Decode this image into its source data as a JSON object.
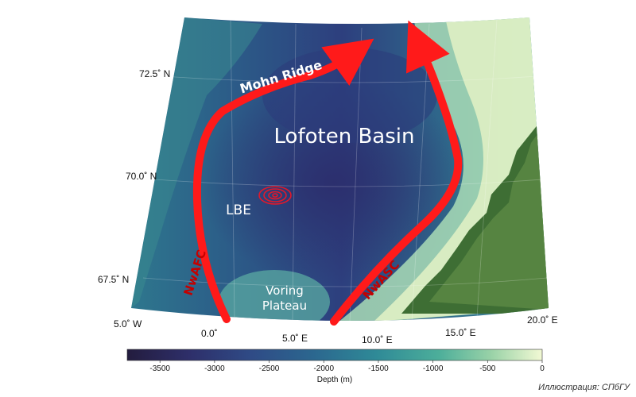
{
  "map": {
    "regions": {
      "mohn_ridge": "Mohn Ridge",
      "lofoten_basin": "Lofoten Basin",
      "lbe": "LBE",
      "voring_plateau_line1": "Voring",
      "voring_plateau_line2": "Plateau"
    },
    "currents": {
      "nwafc": "NwAFC",
      "nwasc": "NwASC"
    },
    "latitude_labels": [
      "72.5˚ N",
      "70.0˚ N",
      "67.5˚ N"
    ],
    "longitude_labels": [
      "5.0˚ W",
      "0.0˚",
      "5.0˚ E",
      "10.0˚ E",
      "15.0˚ E",
      "20.0˚ E"
    ],
    "colors": {
      "deep": "#2a2450",
      "mid": "#2f6e8e",
      "shallow": "#6ec0a8",
      "shelf": "#dff0c4",
      "land": "#3e6e34",
      "current_arrow": "#ff1a1a"
    }
  },
  "colorbar": {
    "title": "Depth (m)",
    "ticks": [
      "-3500",
      "-3000",
      "-2500",
      "-2000",
      "-1500",
      "-1000",
      "-500",
      "0"
    ]
  },
  "credit": "Иллюстрация: СПбГУ"
}
